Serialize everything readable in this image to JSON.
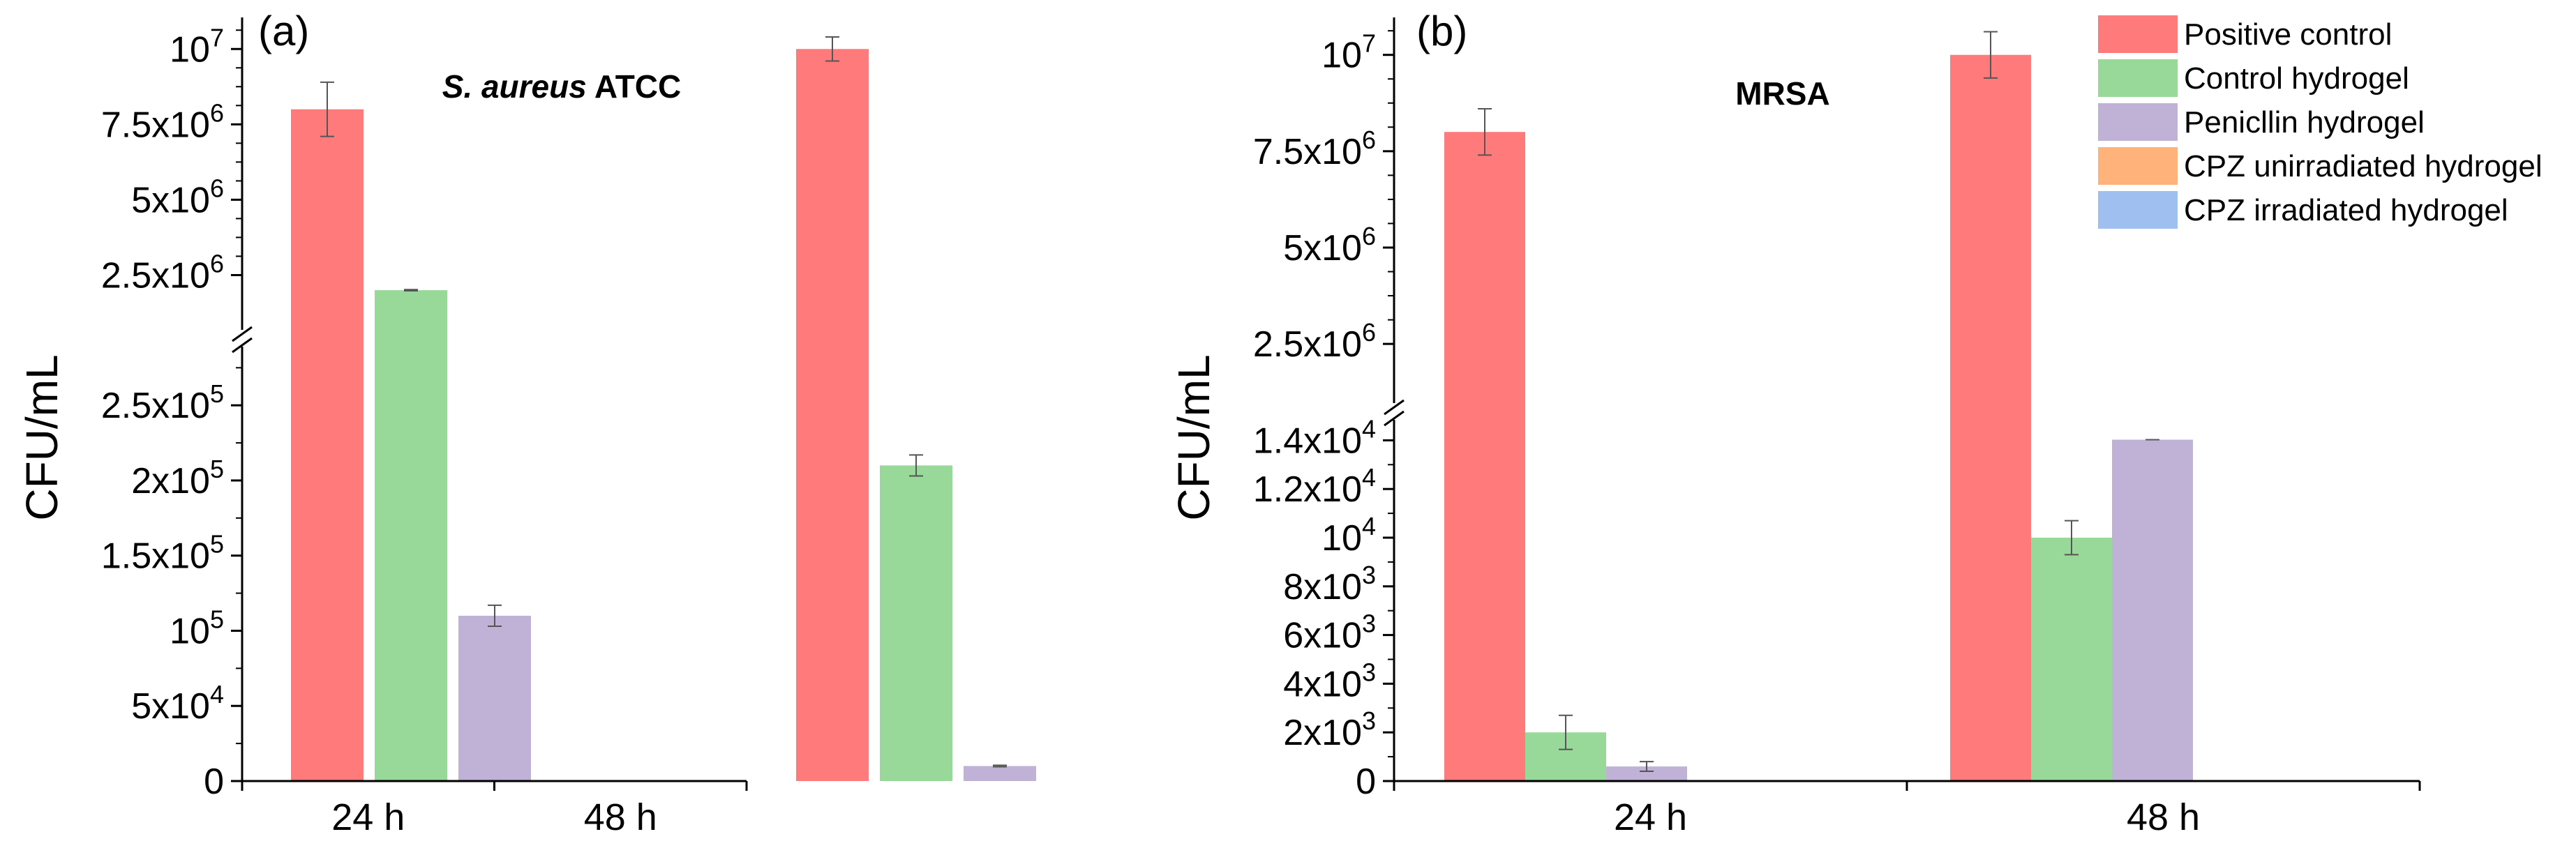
{
  "colors": {
    "Positive control": "#ff7a7a",
    "Control hydrogel": "#98d898",
    "Penicllin hydrogel": "#c0b2d6",
    "CPZ unirradiated hydrogel": "#ffb37a",
    "CPZ irradiated hydrogel": "#9fbff0"
  },
  "legend": {
    "position": "top-right",
    "items": [
      "Positive control",
      "Control hydrogel",
      "Penicllin hydrogel",
      "CPZ unirradiated hydrogel",
      "CPZ irradiated hydrogel"
    ]
  },
  "chart_data": [
    {
      "panel": "(a)",
      "title_italic": "S. aureus",
      "title_rest": " ATCC",
      "type": "bar",
      "ylabel": "CFU/mL",
      "categories": [
        "24 h",
        "48 h"
      ],
      "axis_break": true,
      "ylim_lower": [
        0,
        290000
      ],
      "ylim_upper": [
        1100000,
        10700000
      ],
      "yticks_lower": [
        {
          "value": 0,
          "base": "0",
          "exp": ""
        },
        {
          "value": 50000,
          "base": "5x10",
          "exp": "4"
        },
        {
          "value": 100000,
          "base": "10",
          "exp": "5"
        },
        {
          "value": 150000,
          "base": "1.5x10",
          "exp": "5"
        },
        {
          "value": 200000,
          "base": "2x10",
          "exp": "5"
        },
        {
          "value": 250000,
          "base": "2.5x10",
          "exp": "5"
        }
      ],
      "yticks_upper": [
        {
          "value": 2500000,
          "base": "2.5x10",
          "exp": "6"
        },
        {
          "value": 5000000,
          "base": "5x10",
          "exp": "6"
        },
        {
          "value": 7500000,
          "base": "7.5x10",
          "exp": "6"
        },
        {
          "value": 10000000,
          "base": "10",
          "exp": "7"
        }
      ],
      "series": [
        {
          "name": "Positive control",
          "values": [
            8000000,
            10000000
          ],
          "errors": [
            900000,
            400000
          ]
        },
        {
          "name": "Control hydrogel",
          "values": [
            2000000,
            210000
          ],
          "errors": [
            20000,
            7000
          ]
        },
        {
          "name": "Penicllin hydrogel",
          "values": [
            110000,
            10000
          ],
          "errors": [
            7000,
            500
          ]
        },
        {
          "name": "CPZ unirradiated hydrogel",
          "values": [
            0,
            0
          ],
          "errors": [
            0,
            0
          ]
        },
        {
          "name": "CPZ irradiated hydrogel",
          "values": [
            0,
            0
          ],
          "errors": [
            0,
            0
          ]
        }
      ]
    },
    {
      "panel": "(b)",
      "title_italic": "",
      "title_rest": "MRSA",
      "type": "bar",
      "ylabel": "CFU/mL",
      "categories": [
        "24 h",
        "48 h"
      ],
      "axis_break": true,
      "ylim_lower": [
        0,
        14900
      ],
      "ylim_upper": [
        1200000,
        10700000
      ],
      "yticks_lower": [
        {
          "value": 0,
          "base": "0",
          "exp": ""
        },
        {
          "value": 2000,
          "base": "2x10",
          "exp": "3"
        },
        {
          "value": 4000,
          "base": "4x10",
          "exp": "3"
        },
        {
          "value": 6000,
          "base": "6x10",
          "exp": "3"
        },
        {
          "value": 8000,
          "base": "8x10",
          "exp": "3"
        },
        {
          "value": 10000,
          "base": "10",
          "exp": "4"
        },
        {
          "value": 12000,
          "base": "1.2x10",
          "exp": "4"
        },
        {
          "value": 14000,
          "base": "1.4x10",
          "exp": "4"
        }
      ],
      "yticks_upper": [
        {
          "value": 2500000,
          "base": "2.5x10",
          "exp": "6"
        },
        {
          "value": 5000000,
          "base": "5x10",
          "exp": "6"
        },
        {
          "value": 7500000,
          "base": "7.5x10",
          "exp": "6"
        },
        {
          "value": 10000000,
          "base": "10",
          "exp": "7"
        }
      ],
      "series": [
        {
          "name": "Positive control",
          "values": [
            8000000,
            10000000
          ],
          "errors": [
            600000,
            600000
          ]
        },
        {
          "name": "Control hydrogel",
          "values": [
            2000,
            10000
          ],
          "errors": [
            700,
            700
          ]
        },
        {
          "name": "Penicllin hydrogel",
          "values": [
            600,
            15100
          ],
          "errors": [
            200,
            100
          ]
        },
        {
          "name": "CPZ unirradiated hydrogel",
          "values": [
            0,
            0
          ],
          "errors": [
            0,
            0
          ]
        },
        {
          "name": "CPZ irradiated hydrogel",
          "values": [
            0,
            0
          ],
          "errors": [
            0,
            0
          ]
        }
      ]
    }
  ]
}
